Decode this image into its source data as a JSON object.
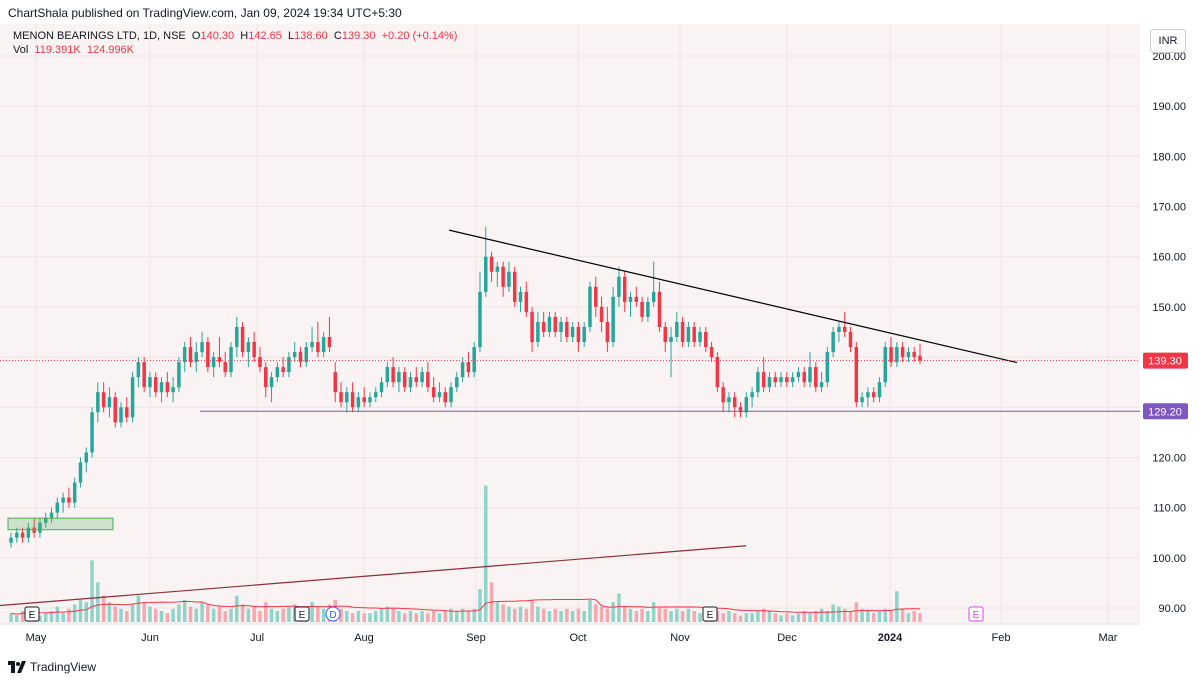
{
  "header": {
    "publisher": "ChartShala published on TradingView.com, Jan 09, 2024 19:34 UTC+5:30"
  },
  "legend": {
    "symbol": "MENON BEARINGS LTD, 1D, NSE",
    "o_label": "O",
    "o": "140.30",
    "h_label": "H",
    "h": "142.65",
    "l_label": "L",
    "l": "138.60",
    "c_label": "C",
    "c": "139.30",
    "change": "+0.20 (+0.14%)",
    "vol_label": "Vol",
    "vol1": "119.391K",
    "vol2": "124.996K"
  },
  "currency": "INR",
  "footer": {
    "brand": "TradingView"
  },
  "colors": {
    "up": "#26a69a",
    "down": "#f23645",
    "bg": "#f9f3f3",
    "support": "#7e57c2",
    "trend": "#000000",
    "uptrend": "#8b2f3a",
    "volma": "#f23645"
  },
  "chart_data": {
    "type": "candlestick",
    "ylim": [
      85,
      205
    ],
    "y_ticks": [
      "90.00",
      "100.00",
      "110.00",
      "120.00",
      "130.00",
      "140.00",
      "150.00",
      "160.00",
      "170.00",
      "180.00",
      "190.00",
      "200.00"
    ],
    "x_ticks": [
      "May",
      "Jun",
      "Jul",
      "Aug",
      "Sep",
      "Oct",
      "Nov",
      "Dec",
      "2024",
      "Feb",
      "Mar"
    ],
    "last_price_label": "139.30",
    "support_label": "129.20",
    "support_level": 129.2,
    "last_price": 139.3,
    "candles": [
      {
        "o": 103,
        "h": 105,
        "l": 102,
        "c": 104
      },
      {
        "o": 104,
        "h": 106,
        "l": 103,
        "c": 105
      },
      {
        "o": 105,
        "h": 106,
        "l": 103,
        "c": 104
      },
      {
        "o": 104,
        "h": 107,
        "l": 103,
        "c": 106
      },
      {
        "o": 106,
        "h": 108,
        "l": 104,
        "c": 105
      },
      {
        "o": 105,
        "h": 108,
        "l": 104,
        "c": 107
      },
      {
        "o": 107,
        "h": 109,
        "l": 106,
        "c": 108
      },
      {
        "o": 108,
        "h": 110,
        "l": 107,
        "c": 109
      },
      {
        "o": 109,
        "h": 112,
        "l": 108,
        "c": 111
      },
      {
        "o": 111,
        "h": 113,
        "l": 109,
        "c": 112
      },
      {
        "o": 112,
        "h": 114,
        "l": 110,
        "c": 111
      },
      {
        "o": 111,
        "h": 116,
        "l": 110,
        "c": 115
      },
      {
        "o": 115,
        "h": 120,
        "l": 114,
        "c": 119
      },
      {
        "o": 119,
        "h": 122,
        "l": 117,
        "c": 121
      },
      {
        "o": 121,
        "h": 130,
        "l": 120,
        "c": 129
      },
      {
        "o": 129,
        "h": 135,
        "l": 127,
        "c": 133
      },
      {
        "o": 133,
        "h": 135,
        "l": 129,
        "c": 130
      },
      {
        "o": 130,
        "h": 134,
        "l": 128,
        "c": 132
      },
      {
        "o": 132,
        "h": 133,
        "l": 126,
        "c": 127
      },
      {
        "o": 127,
        "h": 131,
        "l": 126,
        "c": 130
      },
      {
        "o": 130,
        "h": 132,
        "l": 127,
        "c": 128
      },
      {
        "o": 128,
        "h": 137,
        "l": 127,
        "c": 136
      },
      {
        "o": 136,
        "h": 140,
        "l": 134,
        "c": 139
      },
      {
        "o": 139,
        "h": 140,
        "l": 133,
        "c": 134
      },
      {
        "o": 134,
        "h": 137,
        "l": 132,
        "c": 136
      },
      {
        "o": 136,
        "h": 137,
        "l": 132,
        "c": 133
      },
      {
        "o": 133,
        "h": 136,
        "l": 131,
        "c": 135
      },
      {
        "o": 135,
        "h": 137,
        "l": 132,
        "c": 133
      },
      {
        "o": 133,
        "h": 136,
        "l": 131,
        "c": 134
      },
      {
        "o": 134,
        "h": 140,
        "l": 133,
        "c": 139
      },
      {
        "o": 139,
        "h": 143,
        "l": 137,
        "c": 142
      },
      {
        "o": 142,
        "h": 144,
        "l": 138,
        "c": 139
      },
      {
        "o": 139,
        "h": 143,
        "l": 137,
        "c": 141
      },
      {
        "o": 141,
        "h": 145,
        "l": 140,
        "c": 143
      },
      {
        "o": 143,
        "h": 144,
        "l": 137,
        "c": 138
      },
      {
        "o": 138,
        "h": 141,
        "l": 136,
        "c": 140
      },
      {
        "o": 140,
        "h": 144,
        "l": 138,
        "c": 139
      },
      {
        "o": 139,
        "h": 141,
        "l": 136,
        "c": 137
      },
      {
        "o": 137,
        "h": 143,
        "l": 136,
        "c": 142
      },
      {
        "o": 142,
        "h": 148,
        "l": 140,
        "c": 146
      },
      {
        "o": 146,
        "h": 147,
        "l": 140,
        "c": 141
      },
      {
        "o": 141,
        "h": 144,
        "l": 138,
        "c": 143
      },
      {
        "o": 143,
        "h": 145,
        "l": 139,
        "c": 140
      },
      {
        "o": 140,
        "h": 142,
        "l": 137,
        "c": 138
      },
      {
        "o": 138,
        "h": 139,
        "l": 132,
        "c": 134
      },
      {
        "o": 134,
        "h": 137,
        "l": 131,
        "c": 136
      },
      {
        "o": 136,
        "h": 139,
        "l": 135,
        "c": 138
      },
      {
        "o": 138,
        "h": 140,
        "l": 136,
        "c": 137
      },
      {
        "o": 137,
        "h": 141,
        "l": 136,
        "c": 140
      },
      {
        "o": 140,
        "h": 143,
        "l": 139,
        "c": 141
      },
      {
        "o": 141,
        "h": 142,
        "l": 138,
        "c": 139
      },
      {
        "o": 139,
        "h": 143,
        "l": 138,
        "c": 142
      },
      {
        "o": 142,
        "h": 146,
        "l": 141,
        "c": 143
      },
      {
        "o": 143,
        "h": 147,
        "l": 140,
        "c": 141
      },
      {
        "o": 141,
        "h": 145,
        "l": 140,
        "c": 144
      },
      {
        "o": 144,
        "h": 148,
        "l": 141,
        "c": 142
      },
      {
        "o": 137,
        "h": 139,
        "l": 131,
        "c": 133
      },
      {
        "o": 133,
        "h": 135,
        "l": 130,
        "c": 131
      },
      {
        "o": 131,
        "h": 134,
        "l": 129,
        "c": 133
      },
      {
        "o": 133,
        "h": 135,
        "l": 129,
        "c": 130
      },
      {
        "o": 130,
        "h": 133,
        "l": 129,
        "c": 132
      },
      {
        "o": 132,
        "h": 134,
        "l": 130,
        "c": 131
      },
      {
        "o": 131,
        "h": 133,
        "l": 130,
        "c": 132
      },
      {
        "o": 132,
        "h": 134,
        "l": 131,
        "c": 133
      },
      {
        "o": 133,
        "h": 136,
        "l": 132,
        "c": 135
      },
      {
        "o": 135,
        "h": 139,
        "l": 134,
        "c": 138
      },
      {
        "o": 138,
        "h": 140,
        "l": 134,
        "c": 135
      },
      {
        "o": 135,
        "h": 138,
        "l": 133,
        "c": 137
      },
      {
        "o": 137,
        "h": 138,
        "l": 133,
        "c": 134
      },
      {
        "o": 134,
        "h": 137,
        "l": 133,
        "c": 136
      },
      {
        "o": 136,
        "h": 138,
        "l": 134,
        "c": 135
      },
      {
        "o": 135,
        "h": 138,
        "l": 134,
        "c": 137
      },
      {
        "o": 137,
        "h": 139,
        "l": 133,
        "c": 134
      },
      {
        "o": 134,
        "h": 136,
        "l": 131,
        "c": 132
      },
      {
        "o": 132,
        "h": 135,
        "l": 131,
        "c": 133
      },
      {
        "o": 133,
        "h": 134,
        "l": 130,
        "c": 131
      },
      {
        "o": 131,
        "h": 135,
        "l": 130,
        "c": 134
      },
      {
        "o": 134,
        "h": 137,
        "l": 133,
        "c": 136
      },
      {
        "o": 136,
        "h": 140,
        "l": 135,
        "c": 139
      },
      {
        "o": 139,
        "h": 141,
        "l": 136,
        "c": 137
      },
      {
        "o": 137,
        "h": 143,
        "l": 136,
        "c": 142
      },
      {
        "o": 142,
        "h": 157,
        "l": 141,
        "c": 153
      },
      {
        "o": 153,
        "h": 166,
        "l": 152,
        "c": 160
      },
      {
        "o": 160,
        "h": 161,
        "l": 155,
        "c": 157
      },
      {
        "o": 157,
        "h": 159,
        "l": 154,
        "c": 158
      },
      {
        "o": 158,
        "h": 159,
        "l": 152,
        "c": 154
      },
      {
        "o": 154,
        "h": 159,
        "l": 153,
        "c": 157
      },
      {
        "o": 157,
        "h": 158,
        "l": 150,
        "c": 151
      },
      {
        "o": 151,
        "h": 154,
        "l": 149,
        "c": 153
      },
      {
        "o": 153,
        "h": 155,
        "l": 148,
        "c": 149
      },
      {
        "o": 149,
        "h": 150,
        "l": 141,
        "c": 143
      },
      {
        "o": 143,
        "h": 149,
        "l": 142,
        "c": 147
      },
      {
        "o": 147,
        "h": 149,
        "l": 144,
        "c": 145
      },
      {
        "o": 145,
        "h": 149,
        "l": 144,
        "c": 148
      },
      {
        "o": 148,
        "h": 149,
        "l": 144,
        "c": 145
      },
      {
        "o": 145,
        "h": 148,
        "l": 143,
        "c": 147
      },
      {
        "o": 147,
        "h": 148,
        "l": 143,
        "c": 144
      },
      {
        "o": 144,
        "h": 147,
        "l": 143,
        "c": 146
      },
      {
        "o": 146,
        "h": 147,
        "l": 141,
        "c": 143
      },
      {
        "o": 143,
        "h": 147,
        "l": 142,
        "c": 146
      },
      {
        "o": 146,
        "h": 155,
        "l": 145,
        "c": 154
      },
      {
        "o": 154,
        "h": 156,
        "l": 148,
        "c": 150
      },
      {
        "o": 150,
        "h": 152,
        "l": 145,
        "c": 147
      },
      {
        "o": 147,
        "h": 150,
        "l": 141,
        "c": 143
      },
      {
        "o": 143,
        "h": 154,
        "l": 142,
        "c": 152
      },
      {
        "o": 152,
        "h": 158,
        "l": 150,
        "c": 156
      },
      {
        "o": 156,
        "h": 157,
        "l": 149,
        "c": 151
      },
      {
        "o": 151,
        "h": 153,
        "l": 148,
        "c": 152
      },
      {
        "o": 152,
        "h": 154,
        "l": 150,
        "c": 151
      },
      {
        "o": 151,
        "h": 152,
        "l": 147,
        "c": 148
      },
      {
        "o": 148,
        "h": 152,
        "l": 147,
        "c": 151
      },
      {
        "o": 151,
        "h": 159,
        "l": 150,
        "c": 153
      },
      {
        "o": 153,
        "h": 155,
        "l": 145,
        "c": 146
      },
      {
        "o": 146,
        "h": 147,
        "l": 141,
        "c": 143
      },
      {
        "o": 143,
        "h": 146,
        "l": 136,
        "c": 144
      },
      {
        "o": 144,
        "h": 149,
        "l": 143,
        "c": 147
      },
      {
        "o": 147,
        "h": 148,
        "l": 142,
        "c": 143
      },
      {
        "o": 143,
        "h": 147,
        "l": 142,
        "c": 146
      },
      {
        "o": 146,
        "h": 147,
        "l": 142,
        "c": 143
      },
      {
        "o": 143,
        "h": 146,
        "l": 142,
        "c": 145
      },
      {
        "o": 145,
        "h": 146,
        "l": 141,
        "c": 142
      },
      {
        "o": 142,
        "h": 143,
        "l": 139,
        "c": 140
      },
      {
        "o": 140,
        "h": 141,
        "l": 133,
        "c": 134
      },
      {
        "o": 134,
        "h": 135,
        "l": 129,
        "c": 131
      },
      {
        "o": 131,
        "h": 133,
        "l": 129,
        "c": 132
      },
      {
        "o": 132,
        "h": 133,
        "l": 128,
        "c": 130
      },
      {
        "o": 130,
        "h": 131,
        "l": 128,
        "c": 129
      },
      {
        "o": 129,
        "h": 133,
        "l": 128,
        "c": 132
      },
      {
        "o": 132,
        "h": 134,
        "l": 130,
        "c": 133
      },
      {
        "o": 133,
        "h": 138,
        "l": 132,
        "c": 137
      },
      {
        "o": 137,
        "h": 140,
        "l": 133,
        "c": 134
      },
      {
        "o": 134,
        "h": 137,
        "l": 133,
        "c": 136
      },
      {
        "o": 136,
        "h": 137,
        "l": 134,
        "c": 135
      },
      {
        "o": 135,
        "h": 137,
        "l": 134,
        "c": 136
      },
      {
        "o": 136,
        "h": 137,
        "l": 134,
        "c": 135
      },
      {
        "o": 135,
        "h": 137,
        "l": 134,
        "c": 136
      },
      {
        "o": 136,
        "h": 138,
        "l": 135,
        "c": 137
      },
      {
        "o": 137,
        "h": 138,
        "l": 134,
        "c": 135
      },
      {
        "o": 135,
        "h": 141,
        "l": 134,
        "c": 138
      },
      {
        "o": 138,
        "h": 139,
        "l": 133,
        "c": 134
      },
      {
        "o": 134,
        "h": 137,
        "l": 133,
        "c": 135
      },
      {
        "o": 135,
        "h": 142,
        "l": 134,
        "c": 141
      },
      {
        "o": 141,
        "h": 146,
        "l": 140,
        "c": 145
      },
      {
        "o": 145,
        "h": 147,
        "l": 143,
        "c": 146
      },
      {
        "o": 146,
        "h": 149,
        "l": 144,
        "c": 145
      },
      {
        "o": 145,
        "h": 146,
        "l": 141,
        "c": 142
      },
      {
        "o": 142,
        "h": 143,
        "l": 130,
        "c": 131
      },
      {
        "o": 131,
        "h": 133,
        "l": 130,
        "c": 132
      },
      {
        "o": 132,
        "h": 134,
        "l": 130,
        "c": 133
      },
      {
        "o": 133,
        "h": 134,
        "l": 131,
        "c": 132
      },
      {
        "o": 132,
        "h": 136,
        "l": 131,
        "c": 135
      },
      {
        "o": 135,
        "h": 143,
        "l": 134,
        "c": 142
      },
      {
        "o": 142,
        "h": 144,
        "l": 138,
        "c": 139
      },
      {
        "o": 139,
        "h": 143,
        "l": 138,
        "c": 142
      },
      {
        "o": 142,
        "h": 143,
        "l": 139,
        "c": 140
      },
      {
        "o": 140,
        "h": 142,
        "l": 139,
        "c": 141
      },
      {
        "o": 141,
        "h": 142,
        "l": 139,
        "c": 140
      },
      {
        "o": 140.3,
        "h": 142.65,
        "l": 138.6,
        "c": 139.3
      }
    ],
    "volumes": [
      4,
      3,
      5,
      4,
      6,
      3,
      4,
      5,
      7,
      4,
      6,
      8,
      10,
      9,
      28,
      18,
      12,
      9,
      7,
      6,
      5,
      8,
      12,
      9,
      7,
      6,
      5,
      4,
      6,
      8,
      10,
      7,
      6,
      9,
      8,
      6,
      7,
      5,
      6,
      12,
      8,
      6,
      7,
      5,
      9,
      6,
      5,
      6,
      7,
      8,
      6,
      7,
      9,
      7,
      6,
      8,
      10,
      6,
      5,
      4,
      5,
      4,
      4,
      5,
      6,
      7,
      6,
      5,
      4,
      5,
      4,
      5,
      4,
      5,
      4,
      5,
      6,
      5,
      6,
      5,
      6,
      15,
      62,
      18,
      9,
      8,
      7,
      6,
      7,
      6,
      10,
      7,
      6,
      5,
      6,
      5,
      6,
      5,
      6,
      5,
      10,
      8,
      7,
      6,
      9,
      13,
      7,
      6,
      5,
      6,
      5,
      9,
      7,
      6,
      5,
      6,
      5,
      6,
      5,
      4,
      5,
      6,
      5,
      4,
      5,
      4,
      3,
      4,
      4,
      5,
      6,
      5,
      4,
      3,
      4,
      3,
      4,
      5,
      4,
      5,
      6,
      5,
      8,
      7,
      6,
      5,
      9,
      6,
      5,
      4,
      5,
      6,
      5,
      14,
      6,
      4,
      5,
      4,
      3
    ]
  }
}
